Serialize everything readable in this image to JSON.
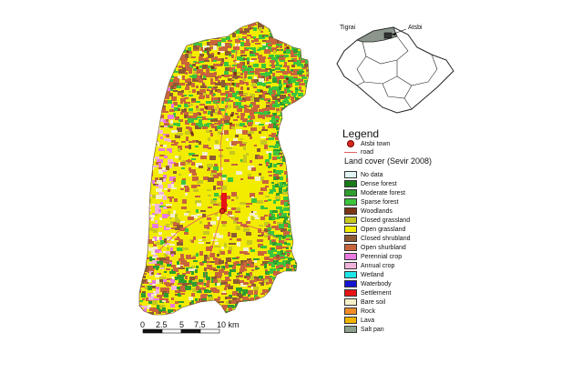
{
  "inset": {
    "region_label": "Tigrai",
    "town_label": "Atsbi"
  },
  "legend": {
    "title": "Legend",
    "town_label": "Atsbi town",
    "road_label": "road",
    "landcover_title": "Land cover (Sevir 2008)",
    "classes": [
      {
        "label": "No data",
        "color": "#e2f4f4"
      },
      {
        "label": "Dense forest",
        "color": "#1a7a1a"
      },
      {
        "label": "Moderate forest",
        "color": "#2f9e2f"
      },
      {
        "label": "Sparse forest",
        "color": "#3cc43c"
      },
      {
        "label": "Woodlands",
        "color": "#7a3516"
      },
      {
        "label": "Closed grassland",
        "color": "#c8c81e"
      },
      {
        "label": "Open grassland",
        "color": "#f2ec00"
      },
      {
        "label": "Closed shrubland",
        "color": "#8c5a32"
      },
      {
        "label": "Open shurbland",
        "color": "#c8643c"
      },
      {
        "label": "Perennial crop",
        "color": "#e87ae0"
      },
      {
        "label": "Annual crop",
        "color": "#f0b4dc"
      },
      {
        "label": "Wetland",
        "color": "#1ee6e6"
      },
      {
        "label": "Waterbody",
        "color": "#1414d2"
      },
      {
        "label": "Settlement",
        "color": "#e61414"
      },
      {
        "label": "Bare soil",
        "color": "#f4f0c8"
      },
      {
        "label": "Rock",
        "color": "#f08c28"
      },
      {
        "label": "Lava",
        "color": "#f0b400"
      },
      {
        "label": "Salt pan",
        "color": "#8ca08c"
      }
    ]
  },
  "scalebar": {
    "ticks": [
      "0",
      "2.5",
      "5",
      "7.5",
      "10 km"
    ]
  }
}
